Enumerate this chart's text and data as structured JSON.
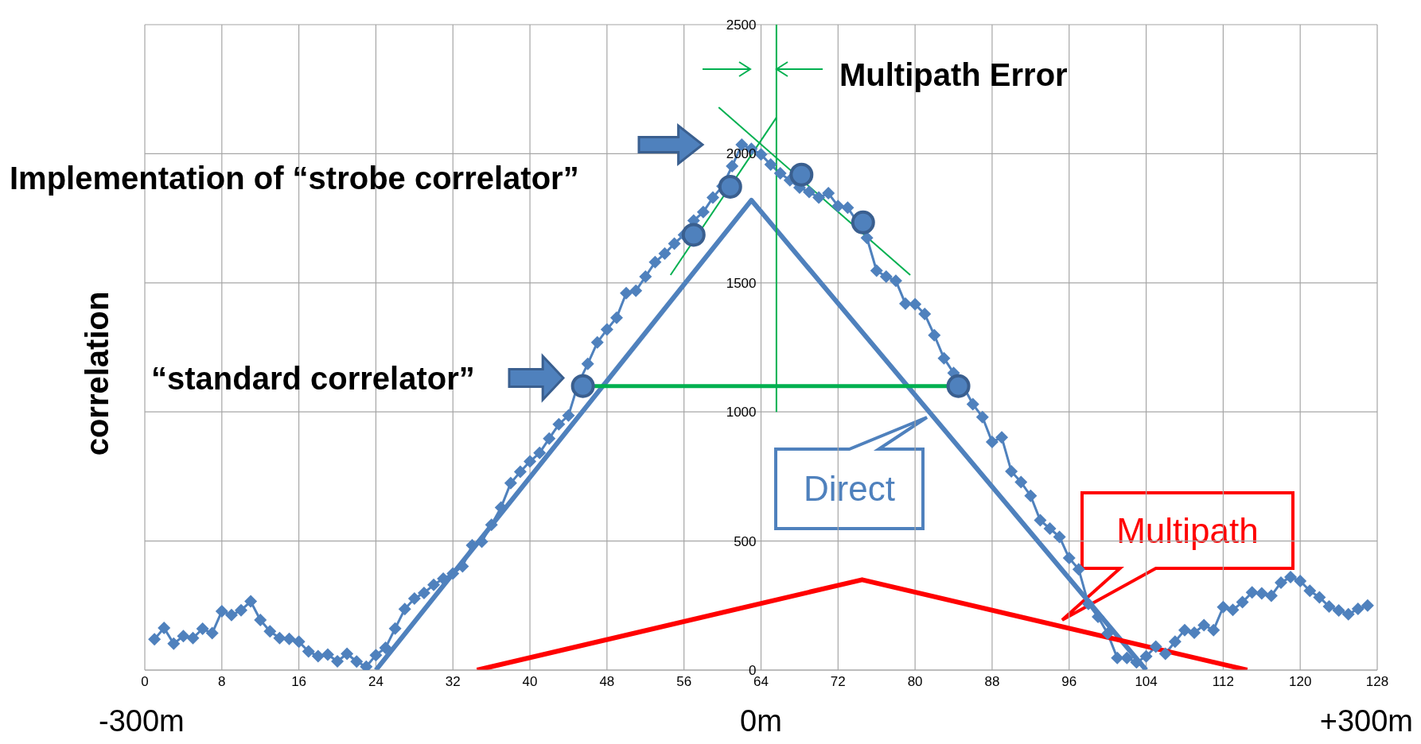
{
  "chart_data": {
    "type": "line",
    "ylabel": "correlation",
    "annotations": [
      "Multipath Error",
      "Implementation of “strobe correlator”",
      "“standard correlator”",
      "-300m",
      "0m",
      "+300m"
    ],
    "series": [
      {
        "color": "#4f81bd",
        "marker": "diamond",
        "x": [
          1,
          2,
          3,
          4,
          5,
          6,
          7,
          8,
          9,
          10,
          11,
          12,
          13,
          14,
          15,
          16,
          17,
          18,
          19,
          20,
          21,
          22,
          23,
          24,
          25,
          26,
          27,
          28,
          29,
          30,
          31,
          32,
          33,
          34,
          35,
          36,
          37,
          38,
          39,
          40,
          41,
          42,
          43,
          44,
          45,
          46,
          47,
          48,
          49,
          50,
          51,
          52,
          53,
          54,
          55,
          56,
          57,
          58,
          59,
          60,
          61,
          62,
          63,
          64,
          65,
          66,
          67,
          68,
          69,
          70,
          71,
          72,
          73,
          74,
          75,
          76,
          77,
          78,
          79,
          80,
          81,
          82,
          83,
          84,
          85,
          86,
          87,
          88,
          89,
          90,
          91,
          92,
          93,
          94,
          95,
          96,
          97,
          98,
          99,
          100,
          101,
          102,
          103,
          104,
          105,
          106,
          107,
          108,
          109,
          110,
          111,
          112,
          113,
          114,
          115,
          116,
          117,
          118,
          119,
          120,
          121,
          122,
          123,
          124,
          125,
          126,
          127
        ],
        "values": [
          119,
          163,
          102,
          132,
          124,
          160,
          143,
          228,
          213,
          232,
          266,
          194,
          150,
          124,
          121,
          110,
          72,
          54,
          60,
          34,
          63,
          33,
          13,
          58,
          86,
          161,
          236,
          277,
          299,
          330,
          354,
          374,
          402,
          483,
          497,
          563,
          630,
          724,
          768,
          808,
          841,
          897,
          952,
          986,
          1108,
          1186,
          1269,
          1319,
          1365,
          1460,
          1469,
          1524,
          1580,
          1613,
          1652,
          1686,
          1741,
          1774,
          1830,
          1874,
          1952,
          2035,
          2019,
          1997,
          1958,
          1924,
          1897,
          1869,
          1852,
          1830,
          1847,
          1797,
          1791,
          1736,
          1674,
          1547,
          1524,
          1508,
          1419,
          1417,
          1379,
          1297,
          1208,
          1151,
          1100,
          1030,
          980,
          884,
          901,
          770,
          728,
          675,
          580,
          548,
          516,
          434,
          390,
          256,
          206,
          142,
          47,
          47,
          30,
          53,
          91,
          63,
          110,
          155,
          145,
          174,
          155,
          244,
          233,
          263,
          301,
          297,
          288,
          339,
          360,
          345,
          307,
          282,
          246,
          231,
          216,
          237,
          250
        ]
      },
      {
        "name": "Direct",
        "color": "#4f81bd",
        "marker": "none",
        "x": [
          24,
          63,
          104
        ],
        "values": [
          0,
          1820,
          0
        ]
      },
      {
        "name": "Multipath",
        "color": "#ff0000",
        "marker": "none",
        "x": [
          34.5,
          74.5,
          114.5
        ],
        "values": [
          0,
          350,
          0
        ]
      },
      {
        "color": "#00b050",
        "marker": "none",
        "x": [
          45.5,
          84.5
        ],
        "values": [
          1100,
          1100
        ]
      },
      {
        "color": "#00b050",
        "marker": "none",
        "x": [
          54.6,
          65.6
        ],
        "values": [
          1530,
          2140
        ]
      },
      {
        "color": "#00b050",
        "marker": "none",
        "x": [
          59.6,
          79.5
        ],
        "values": [
          2180,
          1530
        ]
      },
      {
        "color": "#00b050",
        "marker": "none",
        "x": [
          65.6,
          65.6
        ],
        "values": [
          1000,
          2500
        ]
      },
      {
        "type": "scatter",
        "color": "#4f81bd",
        "marker": "circle",
        "x": [
          45.5,
          57,
          60.8,
          68.2,
          74.6,
          84.5
        ],
        "values": [
          1100,
          1686,
          1872,
          1919,
          1734,
          1100
        ]
      }
    ],
    "xlim": [
      0,
      128
    ],
    "xticks": [
      0,
      8,
      16,
      24,
      32,
      40,
      48,
      56,
      64,
      72,
      80,
      88,
      96,
      104,
      112,
      120,
      128
    ],
    "ylim": [
      0,
      2500
    ],
    "yticks": [
      0,
      500,
      1000,
      1500,
      2000,
      2500
    ],
    "grid": true,
    "legend": false
  }
}
